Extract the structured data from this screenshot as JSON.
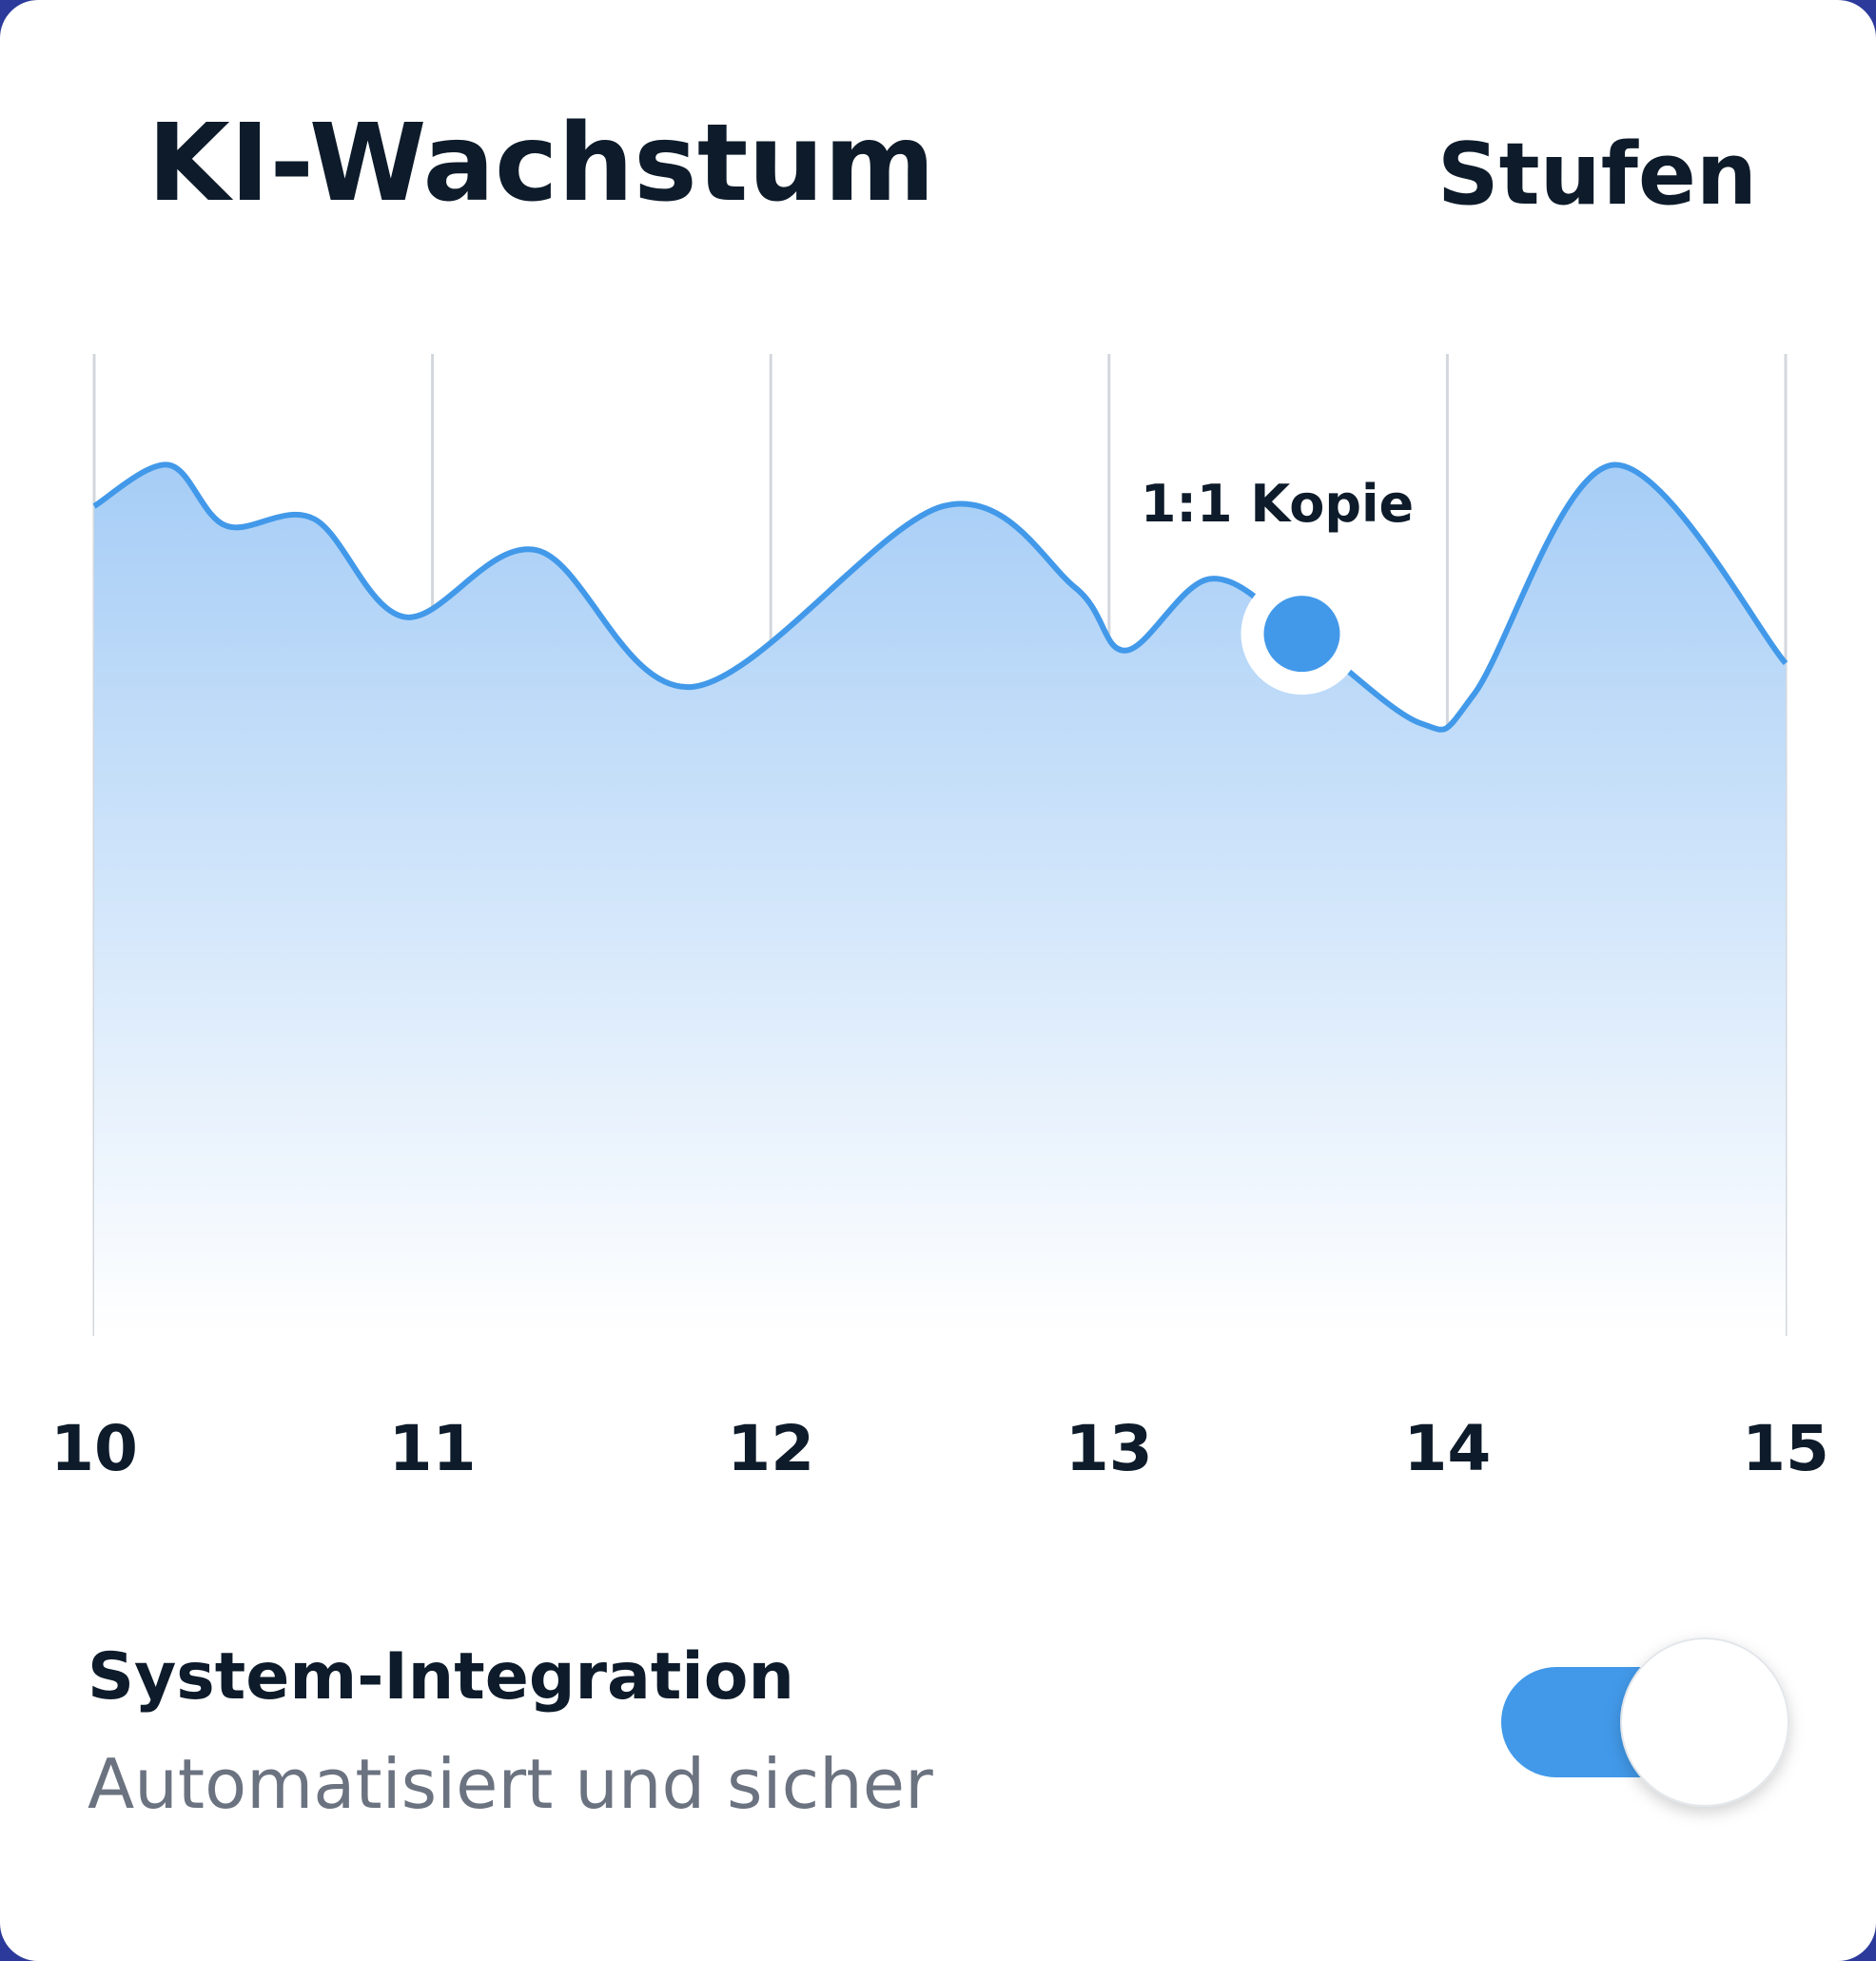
{
  "header": {
    "title": "KI-Wachstum",
    "action": "Stufen"
  },
  "chart_data": {
    "type": "area",
    "x": [
      10,
      10.22,
      10.39,
      10.65,
      10.92,
      11.31,
      11.77,
      12.51,
      12.9,
      13.05,
      13.3,
      13.57,
      13.92,
      14.08,
      14.49,
      15
    ],
    "series": [
      {
        "color": "#4299e9",
        "values": [
          84.5,
          88.7,
          82.5,
          83.2,
          73.2,
          80,
          66.1,
          84.5,
          76.2,
          69.8,
          77.1,
          71.5,
          62.4,
          65.4,
          88.7,
          68.5
        ]
      }
    ],
    "xlim": [
      10,
      15
    ],
    "xticks": [
      10,
      11,
      12,
      13,
      14,
      15
    ],
    "ylim": [
      0,
      100
    ],
    "grid": true,
    "highlight": 11,
    "annotation": "1:1 Kopie"
  },
  "setting": {
    "title": "System-Integration",
    "subtitle": "Automatisiert und sicher",
    "enabled": true
  }
}
